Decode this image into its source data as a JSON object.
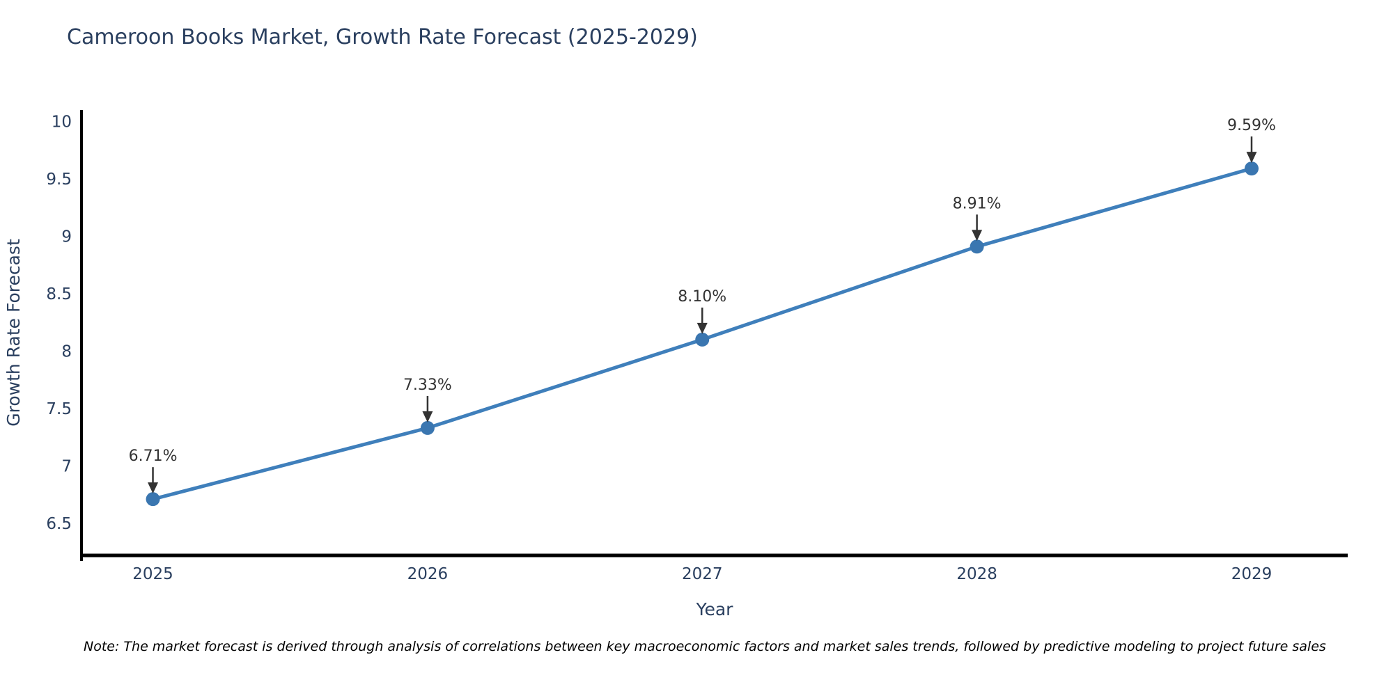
{
  "page": {
    "title": "Cameroon Books Market, Growth Rate Forecast (2025-2029)"
  },
  "note": {
    "text": "Note: The market forecast is derived through analysis of correlations between key macroeconomic factors and market sales trends, followed by predictive modeling to project future sales"
  },
  "chart_data": {
    "type": "line",
    "title": "Cameroon Books Market, Growth Rate Forecast (2025-2029)",
    "x": [
      2025,
      2026,
      2027,
      2028,
      2029
    ],
    "values": [
      6.71,
      7.33,
      8.1,
      8.91,
      9.59
    ],
    "series": [
      {
        "name": "Growth Rate Forecast",
        "values": [
          6.71,
          7.33,
          8.1,
          8.91,
          9.59
        ]
      }
    ],
    "labels": [
      "6.71%",
      "7.33%",
      "8.10%",
      "8.91%",
      "9.59%"
    ],
    "xlabel": "Year",
    "ylabel": "Growth Rate Forecast",
    "xticks": [
      2025,
      2026,
      2027,
      2028,
      2029
    ],
    "yticks": [
      6.5,
      7,
      7.5,
      8,
      8.5,
      9,
      9.5,
      10
    ],
    "ytick_labels": [
      "6.5",
      "7",
      "7.5",
      "8",
      "8.5",
      "9",
      "9.5",
      "10"
    ],
    "xlim": [
      2024.74,
      2029.35
    ],
    "ylim": [
      6.22,
      10.1
    ],
    "grid": false,
    "legend": null,
    "marker_size": 10,
    "line_width": 5,
    "colors": {
      "line": "#3f7fbb",
      "marker": "#3a76b0",
      "axis": "#000000",
      "text": "#2a3f5f",
      "annotation": "#333333",
      "background": "#ffffff"
    }
  }
}
